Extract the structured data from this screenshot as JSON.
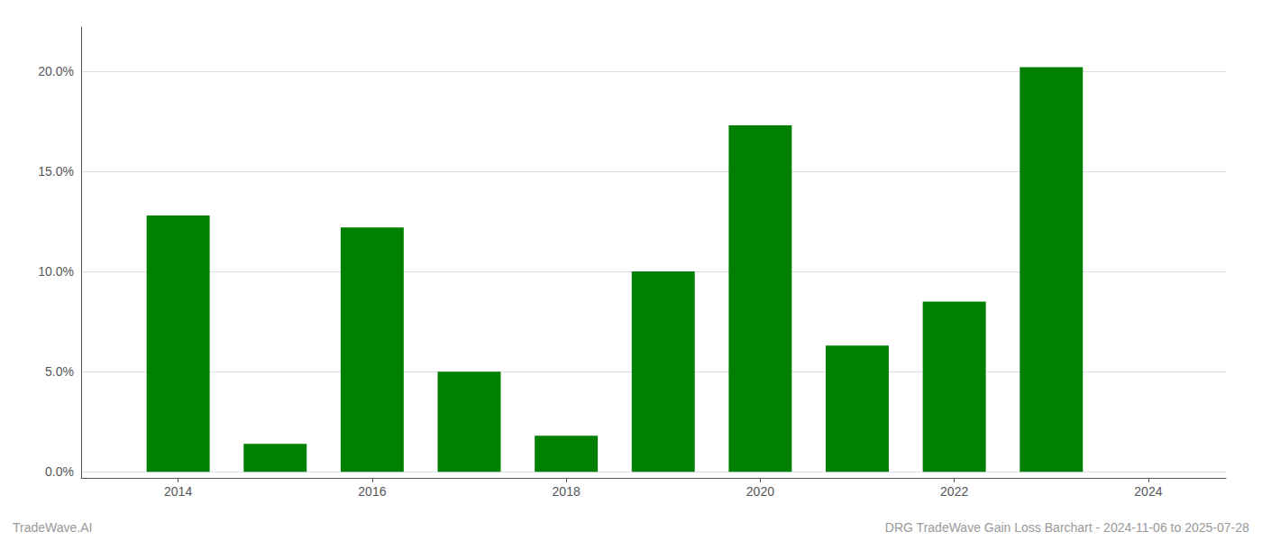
{
  "chart_data": {
    "type": "bar",
    "x": [
      2014,
      2015,
      2016,
      2017,
      2018,
      2019,
      2020,
      2021,
      2022,
      2023
    ],
    "values": [
      0.128,
      0.014,
      0.122,
      0.05,
      0.018,
      0.1,
      0.173,
      0.063,
      0.085,
      0.202
    ],
    "color": "#008000",
    "xlim": [
      2013.0,
      2024.8
    ],
    "xticks": [
      2014,
      2016,
      2018,
      2020,
      2022,
      2024
    ],
    "ylim": [
      -0.003,
      0.222
    ],
    "yticks": [
      {
        "value": 0.0,
        "label": "0.0%"
      },
      {
        "value": 0.05,
        "label": "5.0%"
      },
      {
        "value": 0.1,
        "label": "10.0%"
      },
      {
        "value": 0.15,
        "label": "15.0%"
      },
      {
        "value": 0.2,
        "label": "20.0%"
      }
    ],
    "grid": true,
    "annotations": [
      "TradeWave.AI",
      "DRG TradeWave Gain Loss Barchart - 2024-11-06 to 2025-07-28"
    ]
  }
}
